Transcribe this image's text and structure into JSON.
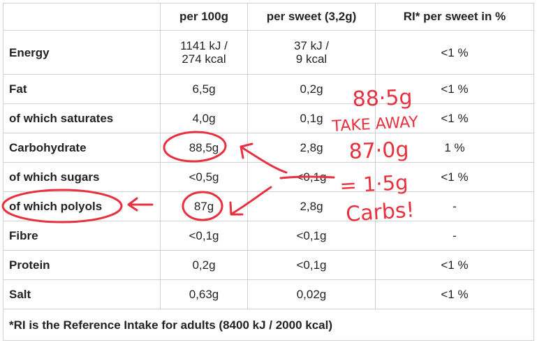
{
  "table": {
    "headers": [
      "",
      "per 100g",
      "per sweet (3,2g)",
      "RI* per sweet in %"
    ],
    "rows": [
      {
        "label": "Energy",
        "per100g_1": "1141 kJ /",
        "per100g_2": "274 kcal",
        "perSweet_1": "37 kJ /",
        "perSweet_2": "9 kcal",
        "ri": "<1 %"
      },
      {
        "label": "Fat",
        "per100g": "6,5g",
        "perSweet": "0,2g",
        "ri": "<1 %"
      },
      {
        "label": "of which saturates",
        "per100g": "4,0g",
        "perSweet": "0,1g",
        "ri": "<1 %"
      },
      {
        "label": "Carbohydrate",
        "per100g": "88,5g",
        "perSweet": "2,8g",
        "ri": "1 %"
      },
      {
        "label": "of which sugars",
        "per100g": "<0,5g",
        "perSweet": "<0,1g",
        "ri": "<1 %"
      },
      {
        "label": "of which polyols",
        "per100g": "87g",
        "perSweet": "2,8g",
        "ri": "-"
      },
      {
        "label": "Fibre",
        "per100g": "<0,1g",
        "perSweet": "<0,1g",
        "ri": "-"
      },
      {
        "label": "Protein",
        "per100g": "0,2g",
        "perSweet": "<0,1g",
        "ri": "<1 %"
      },
      {
        "label": "Salt",
        "per100g": "0,63g",
        "perSweet": "0,02g",
        "ri": "<1 %"
      }
    ],
    "footnote": "*RI is the Reference Intake for adults (8400 kJ / 2000 kcal)"
  },
  "annotation": {
    "line1": "88·5g",
    "line2": "TAKE AWAY",
    "line3": "87·0g",
    "line4": "= 1·5g",
    "line5": "Carbs!",
    "color": "#e8313f"
  }
}
